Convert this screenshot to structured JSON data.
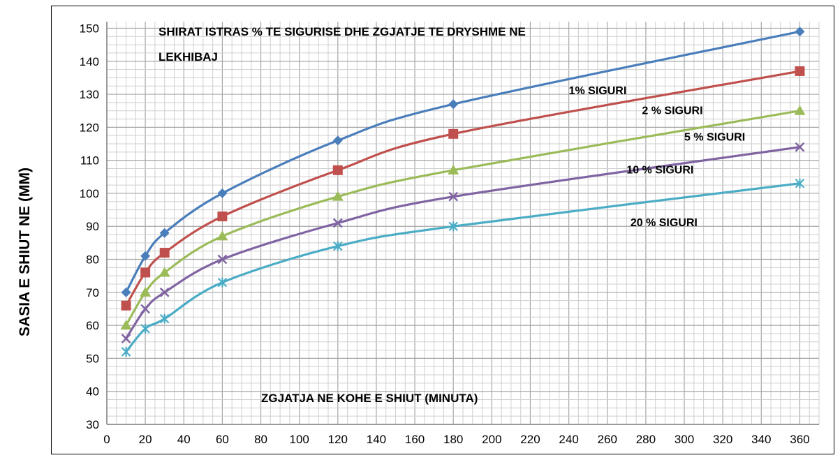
{
  "chart_data": {
    "type": "line",
    "title_lines": [
      "SHIRAT ISTRAS % TE SIGURISE DHE ZGJATJE TE DRYSHME NE",
      "LEKHIBAJ"
    ],
    "xlabel_inside": "ZGJATJA NE KOHE E SHIUT (MINUTA)",
    "ylabel": "SASIA E SHIUT NE (MM)",
    "xlim": [
      0,
      370
    ],
    "ylim": [
      30,
      152
    ],
    "x_ticks": [
      0,
      20,
      40,
      60,
      80,
      100,
      120,
      140,
      160,
      180,
      200,
      220,
      240,
      260,
      280,
      300,
      320,
      340,
      360
    ],
    "y_ticks": [
      30,
      40,
      50,
      60,
      70,
      80,
      90,
      100,
      110,
      120,
      130,
      140,
      150
    ],
    "grid": true,
    "x": [
      10,
      20,
      30,
      60,
      120,
      180,
      360
    ],
    "series": [
      {
        "name": "1% SIGURI",
        "color": "#4a7ebb",
        "marker": "diamond",
        "values": [
          70,
          81,
          88,
          100,
          116,
          127,
          149
        ]
      },
      {
        "name": "2 % SIGURI",
        "color": "#c0504d",
        "marker": "square",
        "values": [
          66,
          76,
          82,
          93,
          107,
          118,
          137
        ]
      },
      {
        "name": "5 % SIGURI",
        "color": "#9bbb59",
        "marker": "triangle",
        "values": [
          60,
          70,
          76,
          87,
          99,
          107,
          125
        ]
      },
      {
        "name": "10 % SIGURI",
        "color": "#8064a2",
        "marker": "x",
        "values": [
          56,
          65,
          70,
          80,
          91,
          99,
          114
        ]
      },
      {
        "name": "20 % SIGURI",
        "color": "#4bacc6",
        "marker": "star",
        "values": [
          52,
          59,
          62,
          73,
          84,
          90,
          103
        ]
      }
    ],
    "annotations": [
      {
        "text": "1% SIGURI",
        "x": 240,
        "y": 130
      },
      {
        "text": "2 % SIGURI",
        "x": 278,
        "y": 124
      },
      {
        "text": "5 % SIGURI",
        "x": 300,
        "y": 116
      },
      {
        "text": "10 % SIGURI",
        "x": 270,
        "y": 106
      },
      {
        "text": "20 % SIGURI",
        "x": 272,
        "y": 90
      }
    ]
  }
}
